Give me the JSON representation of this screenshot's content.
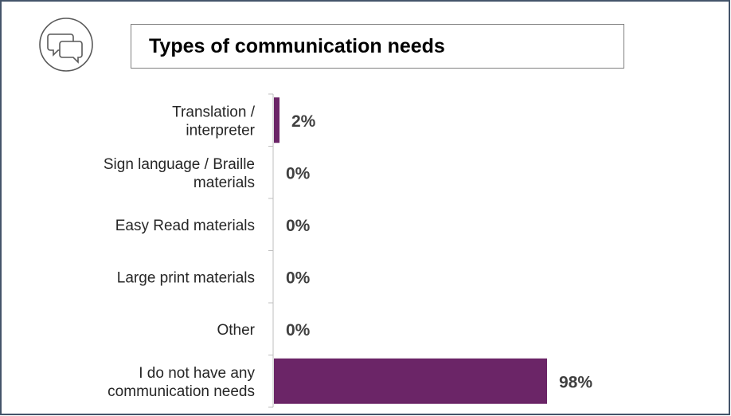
{
  "title": "Types of communication needs",
  "icon": "chat-bubbles-icon",
  "colors": {
    "bar": "#6b2567",
    "frame": "#44546a",
    "axis": "#bfbfbf"
  },
  "chart_data": {
    "type": "bar",
    "orientation": "horizontal",
    "title": "Types of communication needs",
    "categories": [
      [
        "Translation /",
        "interpreter"
      ],
      [
        "Sign language / Braille",
        "materials"
      ],
      [
        "Easy Read materials"
      ],
      [
        "Large print materials"
      ],
      [
        "Other"
      ],
      [
        "I do not have any",
        "communication needs"
      ]
    ],
    "values": [
      2,
      0,
      0,
      0,
      0,
      98
    ],
    "value_labels": [
      "2%",
      "0%",
      "0%",
      "0%",
      "0%",
      "98%"
    ],
    "xlim": [
      0,
      100
    ],
    "unit": "%",
    "grid": false,
    "legend": "none"
  }
}
